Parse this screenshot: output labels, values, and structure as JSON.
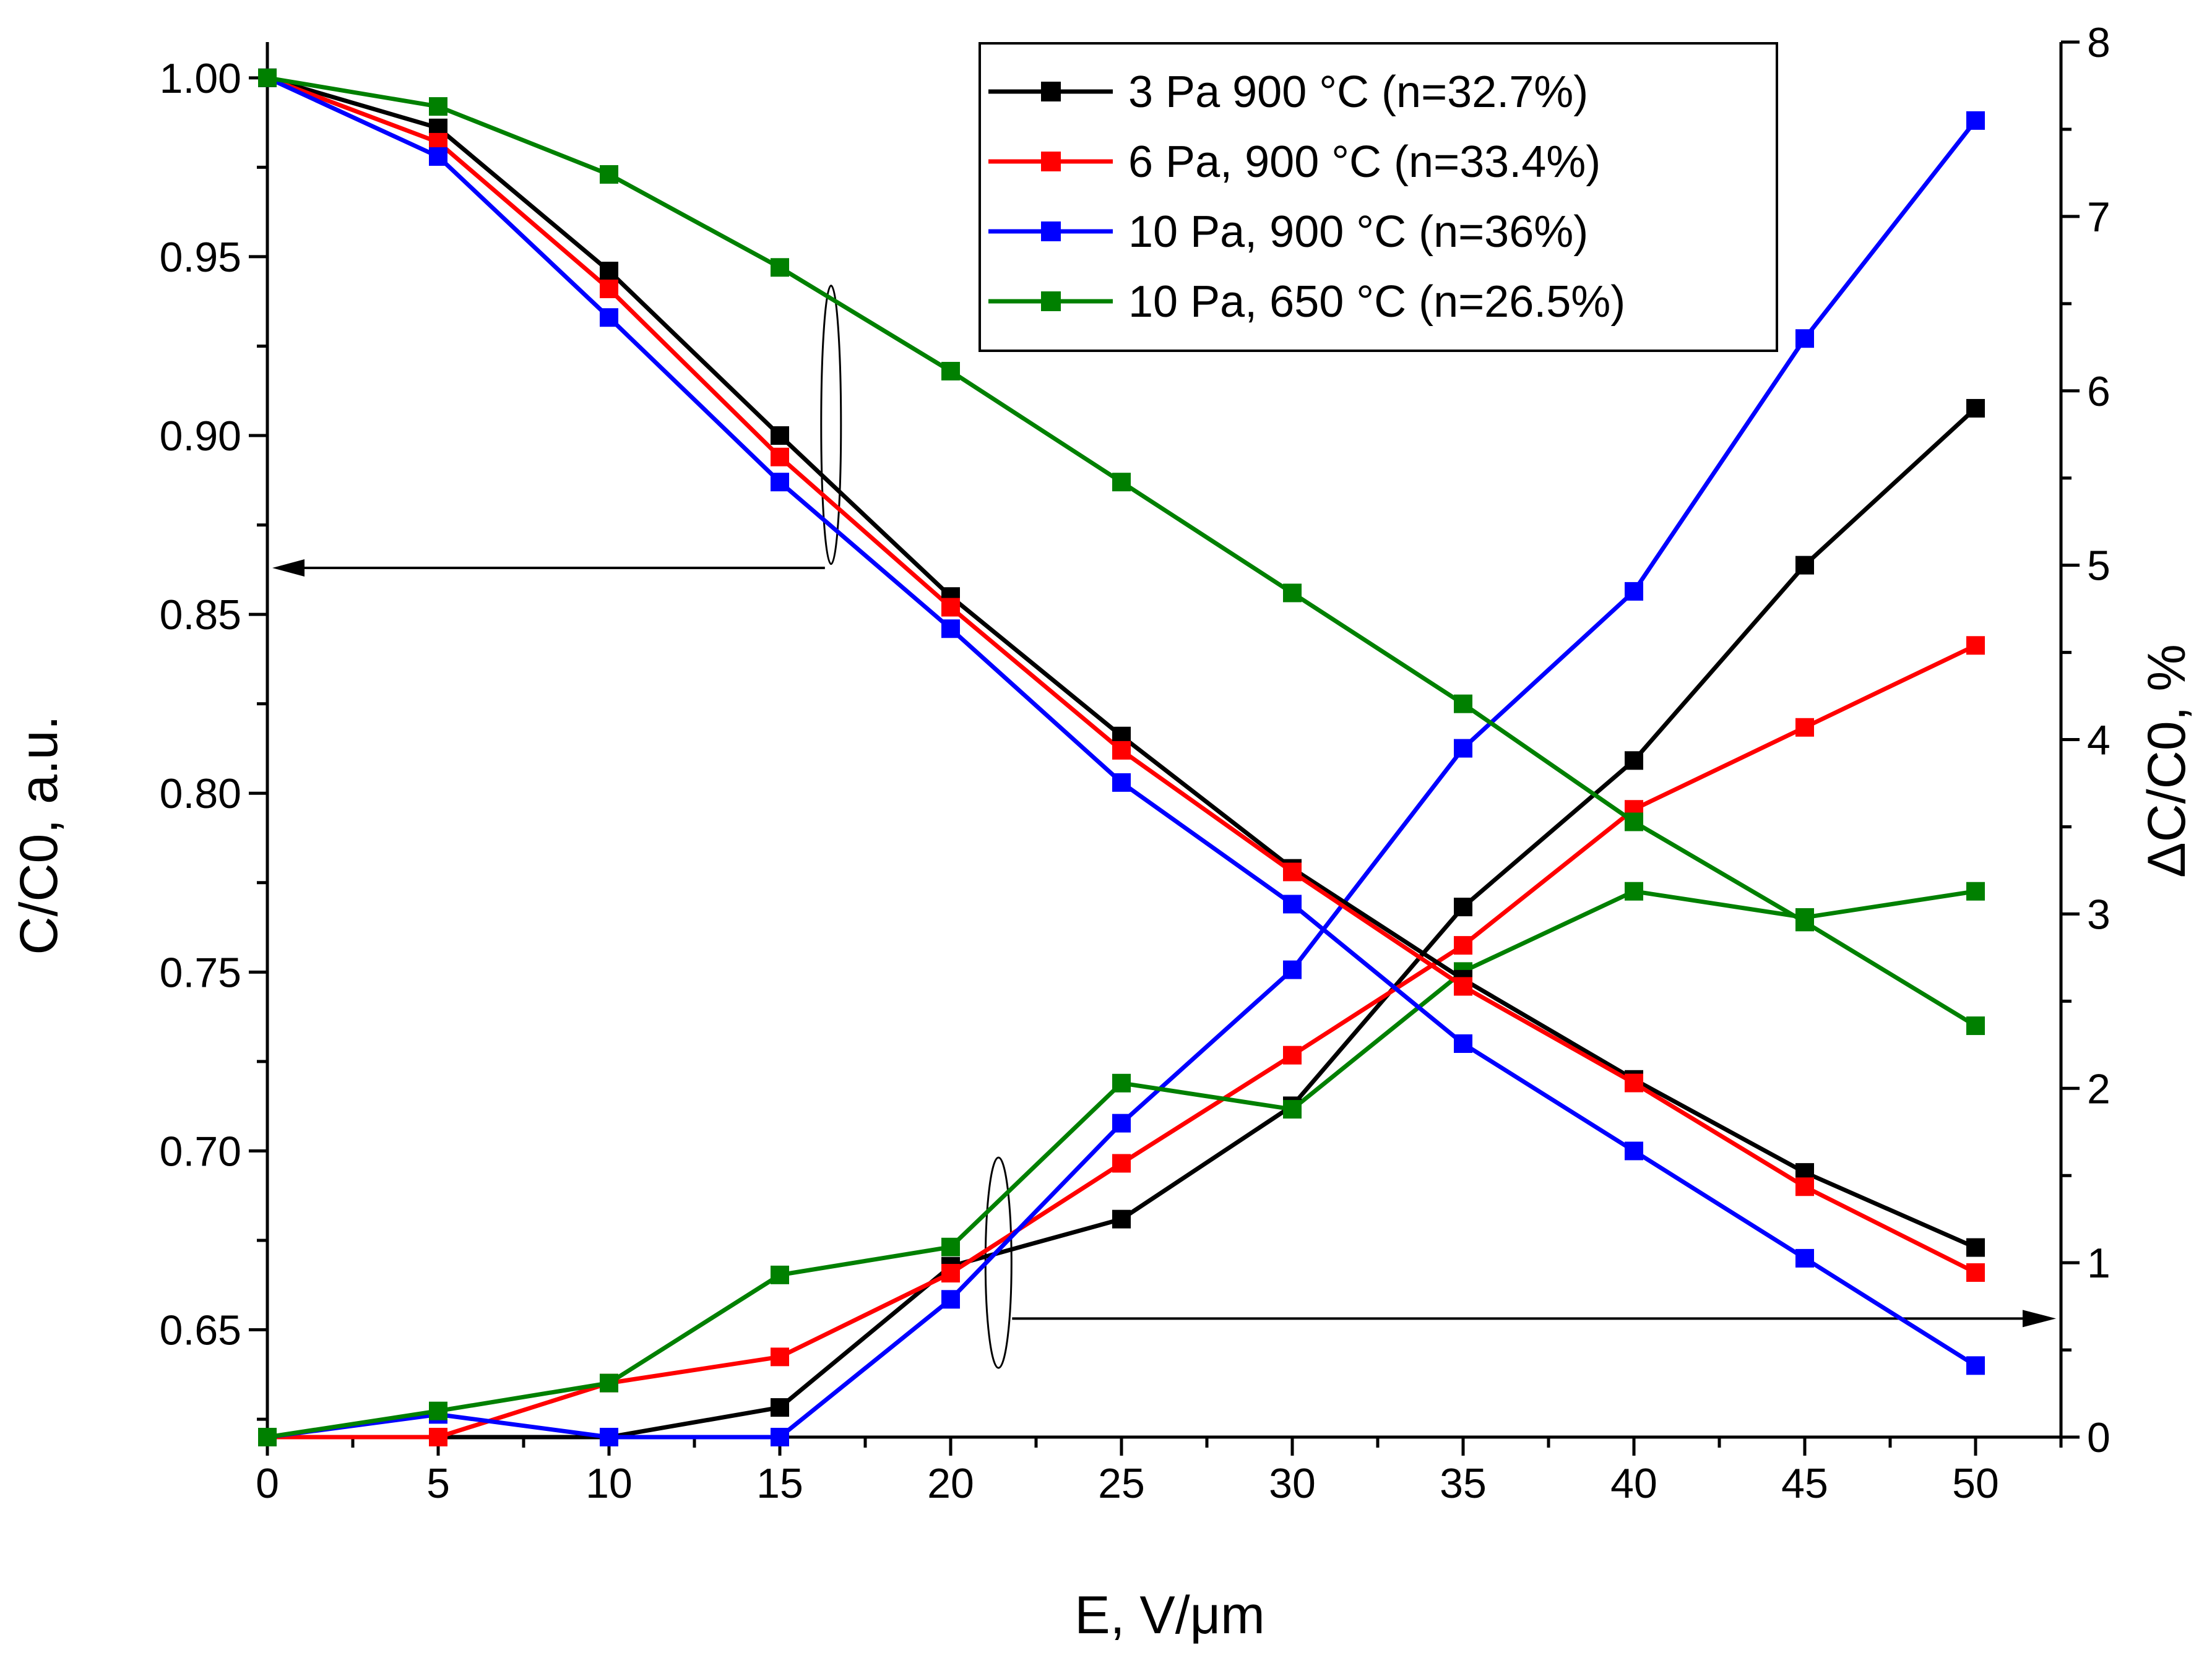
{
  "chart_data": {
    "type": "line",
    "title": "",
    "xlabel": "E, V/μm",
    "ylabel_left": "C/C0, a.u.",
    "ylabel_right": "ΔC/C0, %",
    "xlim": [
      0,
      52.5
    ],
    "ylim_left": [
      0.62,
      1.01
    ],
    "ylim_right": [
      0,
      8
    ],
    "x_ticks": [
      "0",
      "5",
      "10",
      "15",
      "20",
      "25",
      "30",
      "35",
      "40",
      "45",
      "50"
    ],
    "y_left_ticks": [
      "0.65",
      "0.70",
      "0.75",
      "0.80",
      "0.85",
      "0.90",
      "0.95",
      "1.00"
    ],
    "y_right_ticks": [
      "0",
      "1",
      "2",
      "3",
      "4",
      "5",
      "6",
      "7",
      "8"
    ],
    "grid": false,
    "legend_position": "top-right",
    "x": [
      0,
      5,
      10,
      15,
      20,
      25,
      30,
      35,
      40,
      45,
      50
    ],
    "series": [
      {
        "name": "3 Pa 900 °C (n=32.7%)",
        "color": "#000000",
        "left_values": [
          1.0,
          0.986,
          0.946,
          0.9,
          0.855,
          0.816,
          0.779,
          0.748,
          0.72,
          0.694,
          0.673
        ],
        "right_values": [
          0.0,
          0.0,
          0.0,
          0.17,
          0.98,
          1.25,
          1.9,
          3.04,
          3.88,
          5.0,
          5.9
        ]
      },
      {
        "name": "6 Pa, 900 °C (n=33.4%)",
        "color": "#ff0000",
        "left_values": [
          1.0,
          0.982,
          0.941,
          0.894,
          0.852,
          0.812,
          0.778,
          0.746,
          0.719,
          0.69,
          0.666
        ],
        "right_values": [
          0.0,
          0.0,
          0.31,
          0.46,
          0.94,
          1.57,
          2.19,
          2.82,
          3.6,
          4.07,
          4.54
        ]
      },
      {
        "name": "10 Pa, 900 °C (n=36%)",
        "color": "#0000ff",
        "left_values": [
          1.0,
          0.978,
          0.933,
          0.887,
          0.846,
          0.803,
          0.769,
          0.73,
          0.7,
          0.67,
          0.64
        ],
        "right_values": [
          0.0,
          0.13,
          0.0,
          0.0,
          0.79,
          1.8,
          2.68,
          3.95,
          4.85,
          6.3,
          7.55
        ]
      },
      {
        "name": "10 Pa, 650 °C (n=26.5%)",
        "color": "#008000",
        "left_values": [
          1.0,
          0.992,
          0.973,
          0.947,
          0.918,
          0.887,
          0.856,
          0.825,
          0.792,
          0.764,
          0.735
        ],
        "right_values": [
          0.0,
          0.15,
          0.31,
          0.93,
          1.09,
          2.03,
          1.88,
          2.67,
          3.13,
          2.98,
          3.13
        ]
      }
    ]
  }
}
